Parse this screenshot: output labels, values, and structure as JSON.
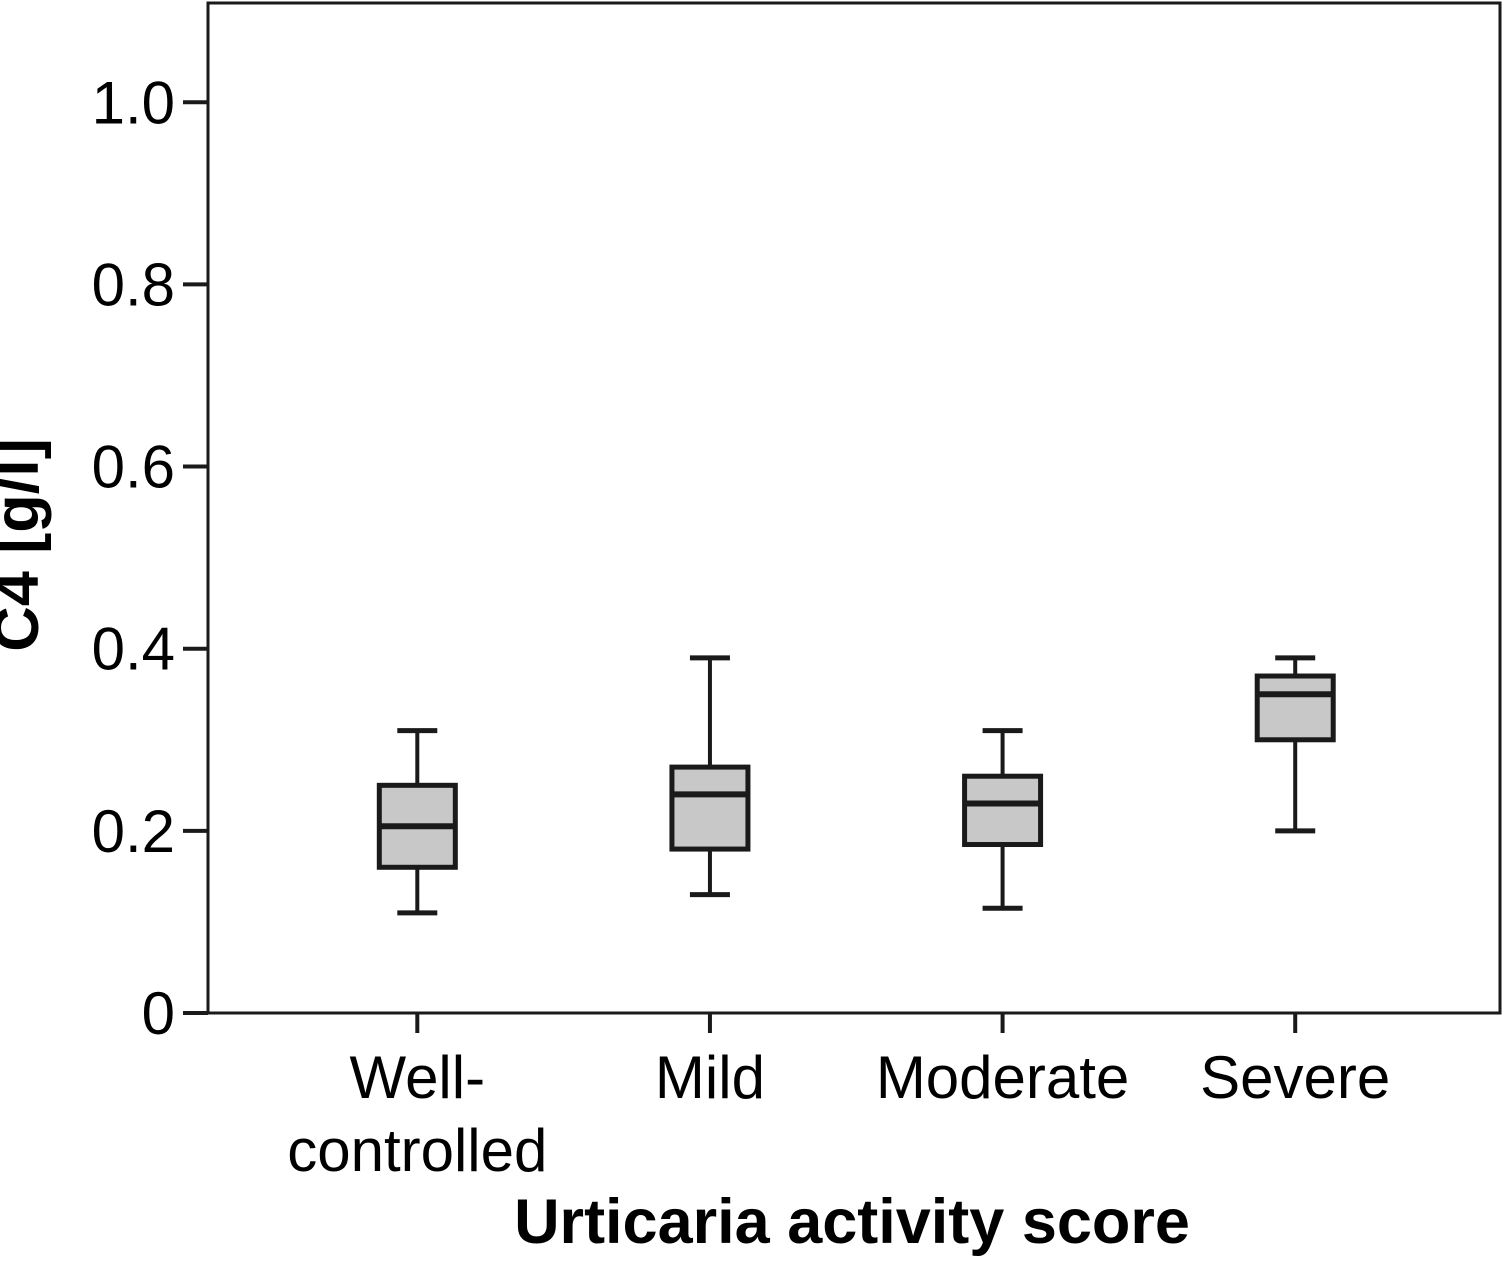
{
  "chart_data": {
    "type": "boxplot",
    "title": "",
    "xlabel": "Urticaria activity score",
    "ylabel": "C4 [g/l]",
    "ylim": [
      0,
      1.109
    ],
    "grid": false,
    "legend": "none",
    "yticks": {
      "values": [
        0,
        0.2,
        0.4,
        0.6,
        0.8,
        1.0
      ],
      "labels": [
        "0",
        "0.2",
        "0.4",
        "0.6",
        "0.8",
        "1.0"
      ]
    },
    "boxes": [
      {
        "category": "Well-controlled",
        "label_lines": [
          "Well-",
          "controlled"
        ],
        "whisker_low": 0.11,
        "q1": 0.16,
        "median": 0.205,
        "q3": 0.25,
        "whisker_high": 0.31
      },
      {
        "category": "Mild",
        "label_lines": [
          "Mild"
        ],
        "whisker_low": 0.13,
        "q1": 0.18,
        "median": 0.24,
        "q3": 0.27,
        "whisker_high": 0.39
      },
      {
        "category": "Moderate",
        "label_lines": [
          "Moderate"
        ],
        "whisker_low": 0.115,
        "q1": 0.185,
        "median": 0.23,
        "q3": 0.26,
        "whisker_high": 0.31
      },
      {
        "category": "Severe",
        "label_lines": [
          "Severe"
        ],
        "whisker_low": 0.2,
        "q1": 0.3,
        "median": 0.35,
        "q3": 0.37,
        "whisker_high": 0.39
      }
    ],
    "colors": {
      "box_fill": "#c8c8c8",
      "line": "#1a1a1a",
      "text": "#000000",
      "background": "#ffffff"
    }
  }
}
